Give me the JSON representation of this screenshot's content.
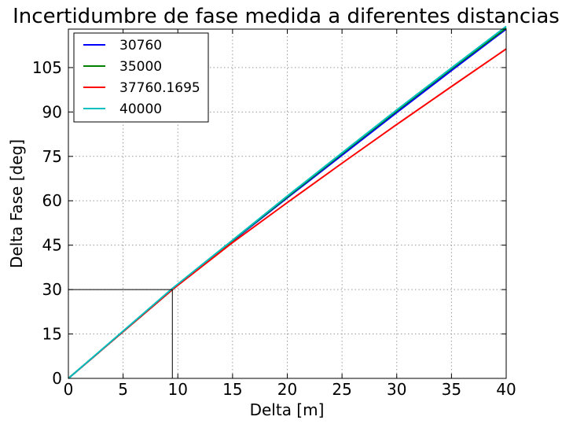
{
  "chart_data": {
    "type": "line",
    "title": "Incertidumbre de fase medida a diferentes distancias",
    "xlabel": "Delta [m]",
    "ylabel": "Delta Fase [deg]",
    "xlim": [
      0,
      40
    ],
    "ylim": [
      0,
      118
    ],
    "xticks": [
      0,
      5,
      10,
      15,
      20,
      25,
      30,
      35,
      40
    ],
    "yticks": [
      0,
      15,
      30,
      45,
      60,
      75,
      90,
      105
    ],
    "grid": true,
    "legend_position": "top-left",
    "series": [
      {
        "name": "30760",
        "color": "#0000ff",
        "x": [
          0,
          9.5,
          15,
          20,
          25,
          30,
          35,
          40
        ],
        "y": [
          0,
          30,
          46.4,
          61.0,
          75.4,
          89.8,
          104.0,
          118.0
        ]
      },
      {
        "name": "35000",
        "color": "#008000",
        "x": [
          0,
          9.5,
          15,
          20,
          25,
          30,
          35,
          40
        ],
        "y": [
          0,
          30,
          46.6,
          61.3,
          75.9,
          90.4,
          104.6,
          118.4
        ]
      },
      {
        "name": "37760.1695",
        "color": "#ff0000",
        "x": [
          0,
          9.5,
          15,
          20,
          25,
          30,
          35,
          40
        ],
        "y": [
          0,
          30,
          45.9,
          59.4,
          72.7,
          85.8,
          98.6,
          111.3
        ]
      },
      {
        "name": "40000",
        "color": "#00bfbf",
        "x": [
          0,
          9.5,
          15,
          20,
          25,
          30,
          35,
          40
        ],
        "y": [
          0,
          30.4,
          46.7,
          61.6,
          76.2,
          90.7,
          104.9,
          118.9
        ]
      }
    ],
    "annotation": {
      "type": "reference-lines",
      "x": 9.5,
      "y": 30,
      "color": "#000000"
    }
  }
}
